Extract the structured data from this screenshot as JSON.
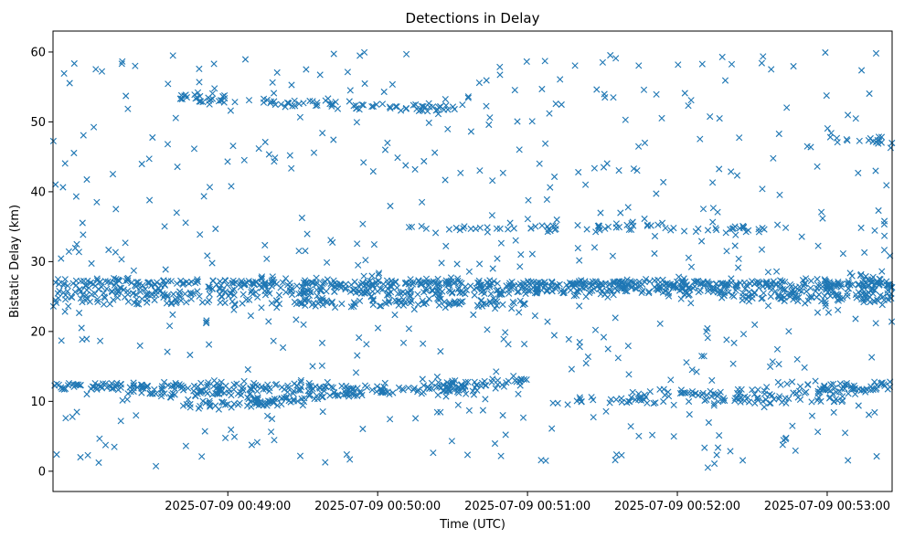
{
  "chart_data": {
    "type": "scatter",
    "title": "Detections in Delay",
    "xlabel": "Time (UTC)",
    "ylabel": "Bistatic Delay (km)",
    "x_start": "2025-07-09 00:47:40",
    "x_ticks": [
      "2025-07-09 00:49:00",
      "2025-07-09 00:50:00",
      "2025-07-09 00:51:00",
      "2025-07-09 00:52:00",
      "2025-07-09 00:53:00"
    ],
    "xlim": [
      "2025-07-09 00:47:50",
      "2025-07-09 00:53:26"
    ],
    "ylim": [
      -2.9,
      63
    ],
    "y_ticks": [
      0,
      10,
      20,
      30,
      40,
      50,
      60
    ],
    "marker": "x",
    "color": "#1f77b4",
    "grid": false,
    "tracks": [
      {
        "name": "",
        "start": [
          0,
          12.2
        ],
        "end": [
          120,
          12.0
        ],
        "density": 1.2
      },
      {
        "name": "",
        "start": [
          40,
          11.0
        ],
        "end": [
          90,
          11.3
        ],
        "density": 1.0
      },
      {
        "name": "",
        "start": [
          60,
          9.5
        ],
        "end": [
          110,
          10.0
        ],
        "density": 1.0
      },
      {
        "name": "",
        "start": [
          90,
          10.0
        ],
        "end": [
          200,
          13.0
        ],
        "density": 1.0
      },
      {
        "name": "",
        "start": [
          120,
          12.0
        ],
        "end": [
          180,
          11.5
        ],
        "density": 0.8
      },
      {
        "name": "",
        "start": [
          240,
          11.0
        ],
        "end": [
          390,
          11.8
        ],
        "density": 0.8
      },
      {
        "name": "",
        "start": [
          300,
          12.5
        ],
        "end": [
          420,
          12.0
        ],
        "density": 0.8
      },
      {
        "name": "",
        "start": [
          210,
          10.0
        ],
        "end": [
          330,
          10.3
        ],
        "density": 0.6
      },
      {
        "name": "",
        "start": [
          390,
          12.0
        ],
        "end": [
          470,
          11.5
        ],
        "density": 0.8
      },
      {
        "name": "",
        "start": [
          440,
          12.5
        ],
        "end": [
          500,
          11.0
        ],
        "density": 0.7
      },
      {
        "name": "",
        "start": [
          0,
          27.0
        ],
        "end": [
          470,
          26.5
        ],
        "density": 1.6
      },
      {
        "name": "",
        "start": [
          0,
          25.5
        ],
        "end": [
          240,
          25.8
        ],
        "density": 1.0
      },
      {
        "name": "",
        "start": [
          0,
          24.5
        ],
        "end": [
          200,
          24.0
        ],
        "density": 0.8
      },
      {
        "name": "",
        "start": [
          200,
          26.0
        ],
        "end": [
          380,
          25.5
        ],
        "density": 0.8
      },
      {
        "name": "",
        "start": [
          300,
          24.8
        ],
        "end": [
          400,
          24.8
        ],
        "density": 0.7
      },
      {
        "name": "",
        "start": [
          360,
          27.5
        ],
        "end": [
          440,
          24.8
        ],
        "density": 0.8
      },
      {
        "name": "",
        "start": [
          260,
          25.0
        ],
        "end": [
          500,
          23.5
        ],
        "density": 0.5
      },
      {
        "name": "",
        "start": [
          330,
          27.5
        ],
        "end": [
          390,
          26.3
        ],
        "density": 1.2
      },
      {
        "name": "",
        "start": [
          390,
          26.3
        ],
        "end": [
          480,
          22.0
        ],
        "density": 1.2
      },
      {
        "name": "",
        "start": [
          480,
          22.0
        ],
        "end": [
          665,
          10.5
        ],
        "density": 1.6
      },
      {
        "name": "",
        "start": [
          60,
          53.5
        ],
        "end": [
          100,
          52.8
        ],
        "density": 0.9
      },
      {
        "name": "",
        "start": [
          100,
          52.8
        ],
        "end": [
          170,
          51.8
        ],
        "density": 0.9
      },
      {
        "name": "",
        "start": [
          320,
          47.5
        ],
        "end": [
          400,
          46.0
        ],
        "density": 0.7
      },
      {
        "name": "",
        "start": [
          400,
          45.0
        ],
        "end": [
          470,
          43.5
        ],
        "density": 0.7
      },
      {
        "name": "",
        "start": [
          470,
          43.5
        ],
        "end": [
          550,
          40.5
        ],
        "density": 1.0
      },
      {
        "name": "",
        "start": [
          550,
          40.5
        ],
        "end": [
          740,
          27.0
        ],
        "density": 1.7
      },
      {
        "name": "",
        "start": [
          630,
          34.5
        ],
        "end": [
          690,
          34.5
        ],
        "density": 0.5
      },
      {
        "name": "",
        "start": [
          150,
          34.8
        ],
        "end": [
          300,
          34.8
        ],
        "density": 0.5
      },
      {
        "name": "",
        "start": [
          640,
          31.0
        ],
        "end": [
          740,
          31.5
        ],
        "density": 0.5
      },
      {
        "name": "",
        "start": [
          640,
          26.0
        ],
        "end": [
          740,
          25.0
        ],
        "density": 0.6
      },
      {
        "name": "",
        "start": [
          540,
          27.0
        ],
        "end": [
          620,
          25.5
        ],
        "density": 0.7
      },
      {
        "name": "",
        "start": [
          560,
          10.0
        ],
        "end": [
          620,
          12.0
        ],
        "density": 0.6
      },
      {
        "name": "",
        "start": [
          620,
          13.0
        ],
        "end": [
          700,
          10.5
        ],
        "density": 0.6
      },
      {
        "name": "",
        "start": [
          680,
          10.3
        ],
        "end": [
          740,
          11.8
        ],
        "density": 0.8
      }
    ],
    "noise_count": 1150,
    "noise_xrange": [
      0,
      740
    ],
    "noise_yrange": [
      0.5,
      60
    ]
  }
}
